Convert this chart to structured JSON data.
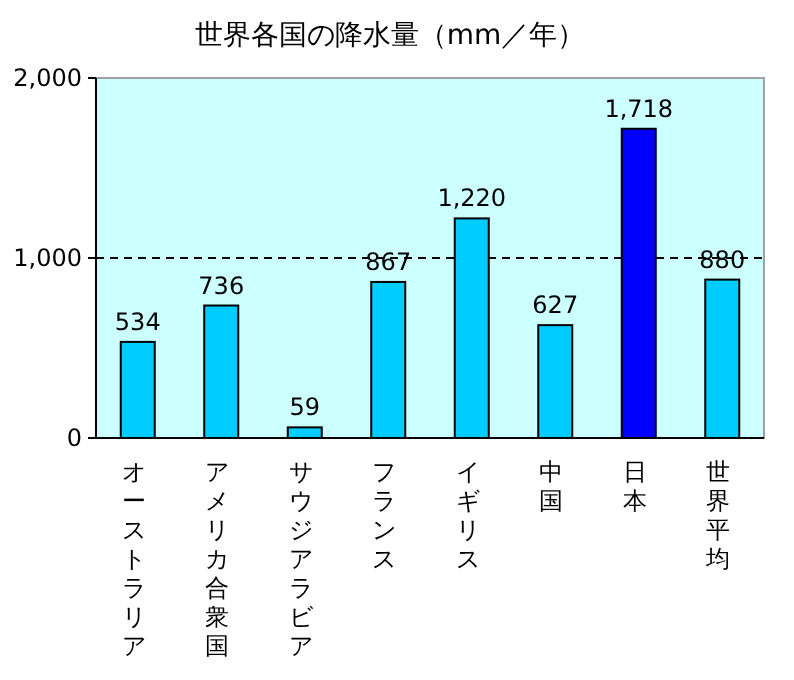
{
  "chart_data": {
    "type": "bar",
    "title": "世界各国の降水量（mm／年）",
    "categories": [
      "オーストラリア",
      "アメリカ合衆国",
      "サウジアラビア",
      "フランス",
      "イギリス",
      "中国",
      "日本",
      "世界平均"
    ],
    "values": [
      534,
      736,
      59,
      867,
      1220,
      627,
      1718,
      880
    ],
    "colors": [
      "#00ccff",
      "#00ccff",
      "#00ccff",
      "#00ccff",
      "#00ccff",
      "#00ccff",
      "#0000ff",
      "#00ccff"
    ],
    "value_labels": [
      "534",
      "736",
      "59",
      "867",
      "1,220",
      "627",
      "1,718",
      "880"
    ],
    "ylim": [
      0,
      2000
    ],
    "yticks": [
      0,
      {
        "value": 1000,
        "label": "1,000"
      },
      {
        "value": 2000,
        "label": "2,000"
      }
    ],
    "ref_lines": [
      {
        "axis": "y",
        "value": 1000,
        "color": "#000000",
        "line_style": "dashed"
      }
    ],
    "grid": false
  }
}
